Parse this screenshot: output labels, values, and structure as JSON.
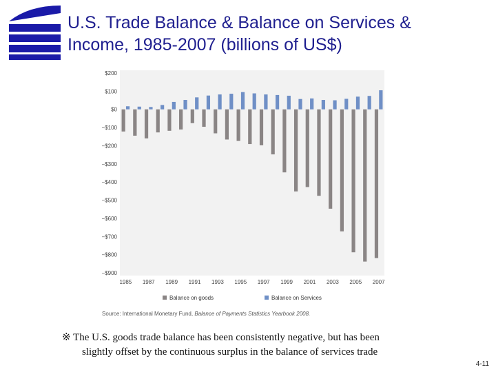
{
  "slide": {
    "title_line1": "U.S. Trade Balance & Balance on Services &",
    "title_line2": "Income, 1985-2007 (billions of US$)",
    "footnote_line1": "※ The U.S. goods trade balance has been consistently negative, but has been",
    "footnote_line2": "slightly offset by the continuous surplus in the balance of services trade",
    "page_number": "4-11",
    "title_color": "#1f1f8f",
    "logo_color": "#1a1aa8"
  },
  "chart_data": {
    "type": "bar",
    "title": "",
    "xlabel": "",
    "ylabel": "",
    "categories": [
      "1985",
      "1986",
      "1987",
      "1988",
      "1989",
      "1990",
      "1991",
      "1992",
      "1993",
      "1994",
      "1995",
      "1996",
      "1997",
      "1998",
      "1999",
      "2000",
      "2001",
      "2002",
      "2003",
      "2004",
      "2005",
      "2006",
      "2007"
    ],
    "x_tick_labels": [
      "1985",
      "1987",
      "1989",
      "1991",
      "1993",
      "1995",
      "1997",
      "1999",
      "2001",
      "2003",
      "2005",
      "2007"
    ],
    "y_tick_labels": [
      "$200",
      "$100",
      "$0",
      "−$100",
      "−$200",
      "−$300",
      "−$400",
      "−$500",
      "−$600",
      "−$700",
      "−$800",
      "−$900"
    ],
    "ylim": [
      -900,
      200
    ],
    "y_ticks": [
      200,
      100,
      0,
      -100,
      -200,
      -300,
      -400,
      -500,
      -600,
      -700,
      -800,
      -900
    ],
    "grid": false,
    "legend_position": "bottom",
    "series": [
      {
        "name": "Balance on goods",
        "color": "#8a8585",
        "values": [
          -122,
          -145,
          -160,
          -127,
          -118,
          -111,
          -76,
          -96,
          -132,
          -166,
          -174,
          -191,
          -198,
          -248,
          -347,
          -452,
          -428,
          -476,
          -547,
          -672,
          -787,
          -838,
          -819
        ]
      },
      {
        "name": "Balance on Services",
        "color": "#6f8fc6",
        "values": [
          17,
          15,
          13,
          24,
          41,
          52,
          66,
          76,
          82,
          86,
          95,
          88,
          82,
          79,
          75,
          57,
          60,
          52,
          50,
          58,
          70,
          74,
          105
        ]
      }
    ],
    "source_prefix": "Source: International Monetary Fund,",
    "source_italic": "Balance of Payments Statistics Yearbook 2008."
  }
}
